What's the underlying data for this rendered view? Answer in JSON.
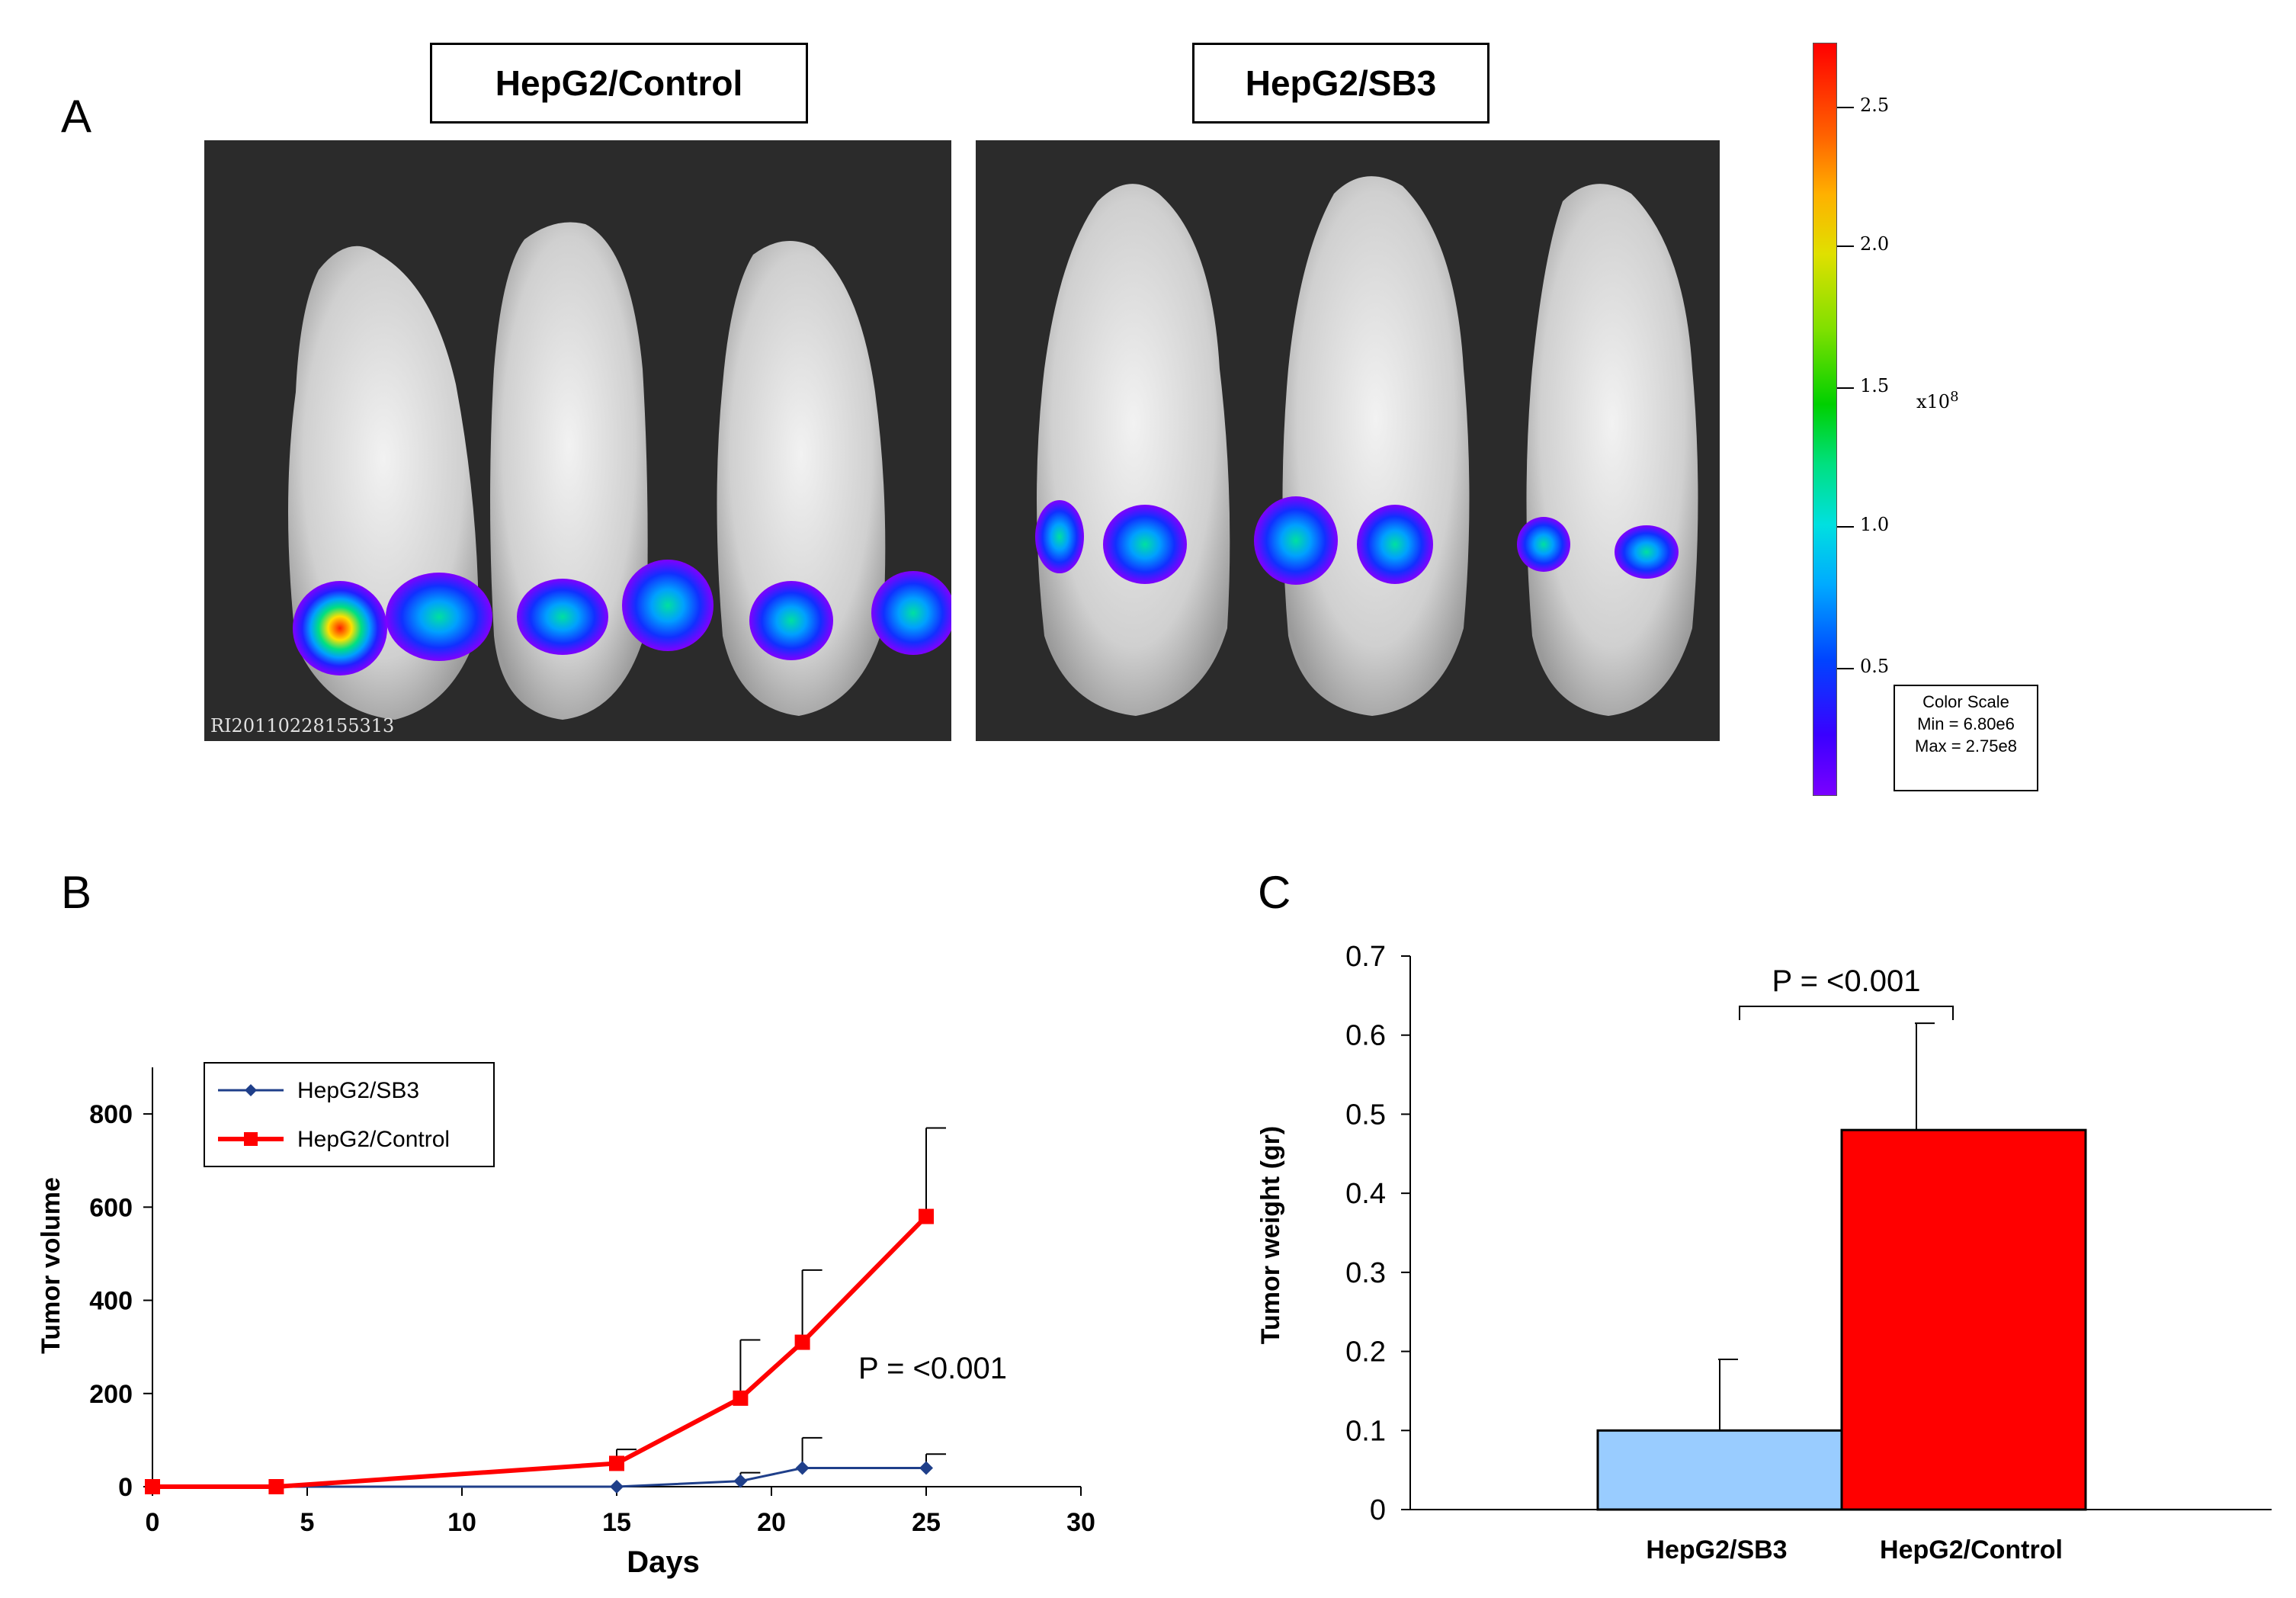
{
  "panel_a": {
    "letter": "A",
    "label_control": "HepG2/Control",
    "label_sb3": "HepG2/SB3",
    "image_id": "RI20110228155313",
    "color_scale": {
      "ticks": [
        "2.5",
        "2.0",
        "1.5",
        "1.0",
        "0.5"
      ],
      "multiplier": "x10",
      "exponent": "8",
      "box_title": "Color Scale",
      "box_min": "Min = 6.80e6",
      "box_max": "Max = 2.75e8"
    }
  },
  "panel_b": {
    "letter": "B",
    "annotation": "P = <0.001"
  },
  "panel_c": {
    "letter": "C",
    "annotation": "P = <0.001"
  },
  "chart_data": [
    {
      "type": "line",
      "panel": "B",
      "xlabel": "Days",
      "ylabel": "Tumor volume",
      "xlim": [
        0,
        30
      ],
      "ylim": [
        0,
        900
      ],
      "xticks": [
        0,
        5,
        10,
        15,
        20,
        25,
        30
      ],
      "yticks": [
        0,
        200,
        400,
        600,
        800
      ],
      "legend_position": "top-left",
      "series": [
        {
          "name": "HepG2/SB3",
          "color": "#1f3f8a",
          "marker": "diamond",
          "x": [
            0,
            4,
            15,
            19,
            21,
            25
          ],
          "values": [
            0,
            0,
            0,
            12,
            40,
            40
          ],
          "error_upper": [
            0,
            0,
            0,
            18,
            65,
            30
          ]
        },
        {
          "name": "HepG2/Control",
          "color": "#ff0000",
          "marker": "square",
          "x": [
            0,
            4,
            15,
            19,
            21,
            25
          ],
          "values": [
            0,
            0,
            50,
            190,
            310,
            580
          ],
          "error_upper": [
            0,
            0,
            30,
            125,
            155,
            190
          ]
        }
      ]
    },
    {
      "type": "bar",
      "panel": "C",
      "ylabel": "Tumor weight (gr)",
      "categories": [
        "HepG2/SB3",
        "HepG2/Control"
      ],
      "values": [
        0.1,
        0.48
      ],
      "error_upper": [
        0.09,
        0.135
      ],
      "colors": [
        "#99ccff",
        "#ff0000"
      ],
      "ylim": [
        0,
        0.7
      ],
      "yticks": [
        "0",
        "0.1",
        "0.2",
        "0.3",
        "0.4",
        "0.5",
        "0.6",
        "0.7"
      ]
    }
  ]
}
